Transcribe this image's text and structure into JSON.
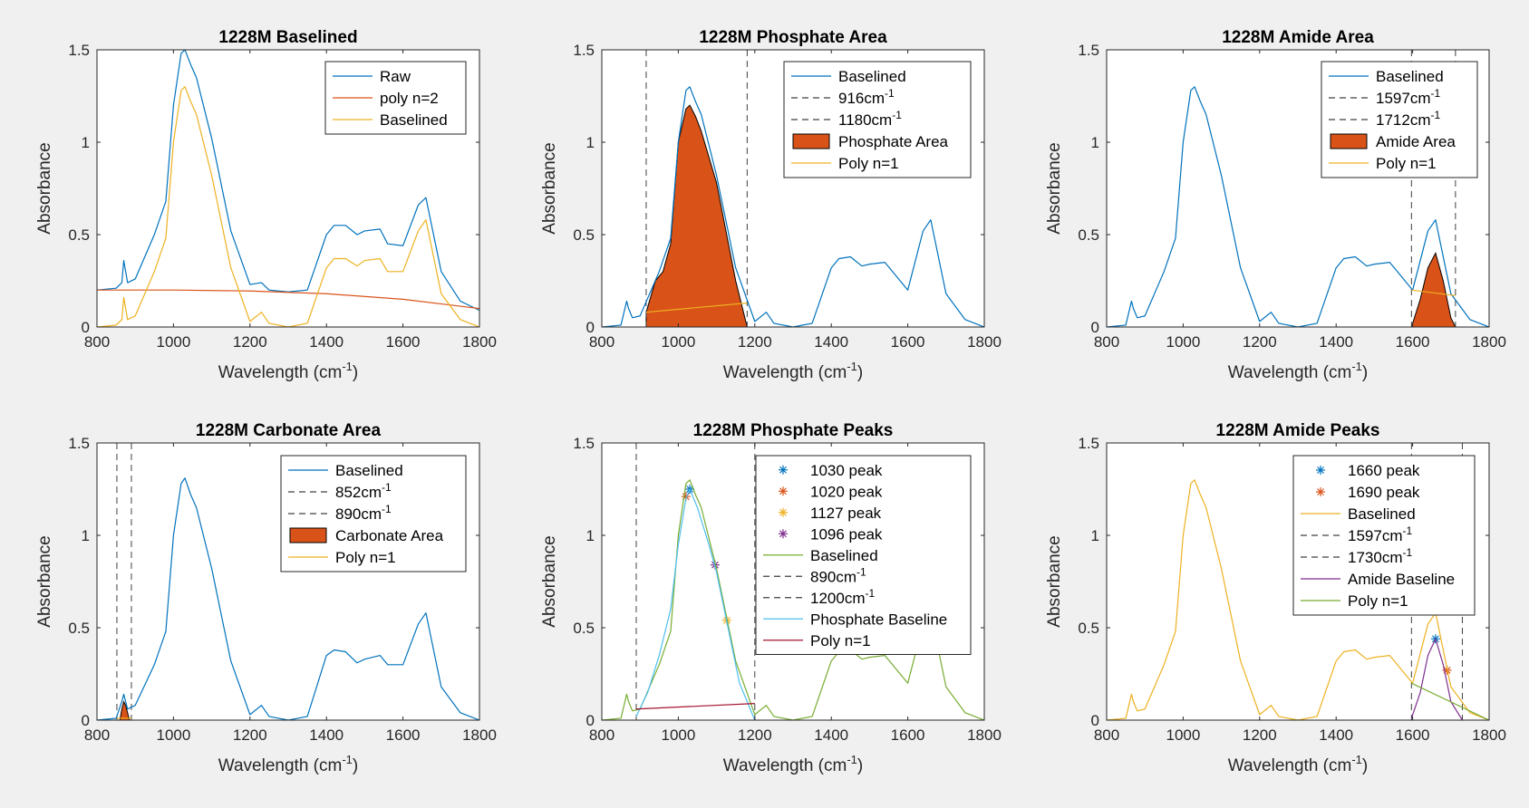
{
  "chart_data": [
    {
      "type": "line",
      "title": "1228M Baselined",
      "xlabel": "Wavelength (cm",
      "xlabel_sup": "-1",
      "xlabel_end": ")",
      "ylabel": "Absorbance",
      "xlim": [
        800,
        1800
      ],
      "ylim": [
        0,
        1.5
      ],
      "xticks": [
        "800",
        "1000",
        "1200",
        "1400",
        "1600",
        "1800"
      ],
      "yticks": [
        "0",
        "0.5",
        "1",
        "1.5"
      ],
      "legend_position": "top-right",
      "series": [
        {
          "name": "Raw",
          "color": "#0072BD",
          "x": [
            800,
            850,
            865,
            870,
            880,
            900,
            950,
            980,
            1000,
            1020,
            1030,
            1045,
            1060,
            1100,
            1150,
            1200,
            1230,
            1250,
            1300,
            1350,
            1400,
            1420,
            1450,
            1480,
            1500,
            1540,
            1560,
            1600,
            1640,
            1660,
            1700,
            1750,
            1800
          ],
          "y": [
            0.2,
            0.21,
            0.24,
            0.36,
            0.24,
            0.26,
            0.5,
            0.68,
            1.2,
            1.48,
            1.5,
            1.42,
            1.35,
            1.02,
            0.52,
            0.23,
            0.24,
            0.2,
            0.19,
            0.2,
            0.5,
            0.55,
            0.55,
            0.5,
            0.52,
            0.53,
            0.45,
            0.44,
            0.66,
            0.7,
            0.3,
            0.14,
            0.09
          ]
        },
        {
          "name": "poly n=2",
          "color": "#D95319",
          "x": [
            800,
            1000,
            1200,
            1400,
            1600,
            1800
          ],
          "y": [
            0.2,
            0.2,
            0.195,
            0.18,
            0.15,
            0.1
          ]
        },
        {
          "name": "Baselined",
          "color": "#EDB120",
          "x": [
            800,
            850,
            865,
            870,
            880,
            900,
            950,
            980,
            1000,
            1020,
            1030,
            1045,
            1060,
            1100,
            1150,
            1200,
            1230,
            1250,
            1300,
            1350,
            1400,
            1420,
            1450,
            1480,
            1500,
            1540,
            1560,
            1600,
            1640,
            1660,
            1700,
            1750,
            1800
          ],
          "y": [
            0,
            0.01,
            0.04,
            0.16,
            0.04,
            0.06,
            0.3,
            0.48,
            1.0,
            1.28,
            1.3,
            1.22,
            1.15,
            0.82,
            0.32,
            0.03,
            0.08,
            0.02,
            0,
            0.02,
            0.32,
            0.37,
            0.37,
            0.33,
            0.36,
            0.37,
            0.3,
            0.3,
            0.52,
            0.58,
            0.18,
            0.04,
            0
          ]
        }
      ]
    },
    {
      "type": "line",
      "title": "1228M Phosphate Area",
      "xlabel": "Wavelength (cm",
      "xlabel_sup": "-1",
      "xlabel_end": ")",
      "ylabel": "Absorbance",
      "xlim": [
        800,
        1800
      ],
      "ylim": [
        0,
        1.5
      ],
      "xticks": [
        "800",
        "1000",
        "1200",
        "1400",
        "1600",
        "1800"
      ],
      "yticks": [
        "0",
        "0.5",
        "1",
        "1.5"
      ],
      "legend_position": "top-right",
      "vlines": [
        916,
        1180
      ],
      "area": {
        "x": [
          916,
          940,
          960,
          980,
          1000,
          1020,
          1030,
          1045,
          1060,
          1100,
          1150,
          1180
        ],
        "y": [
          0.08,
          0.25,
          0.3,
          0.45,
          1.0,
          1.18,
          1.2,
          1.14,
          1.06,
          0.78,
          0.25,
          0.0
        ]
      },
      "series": [
        {
          "name": "Baselined",
          "color": "#0072BD",
          "x": [
            800,
            850,
            865,
            870,
            880,
            900,
            950,
            980,
            1000,
            1020,
            1030,
            1045,
            1060,
            1100,
            1150,
            1200,
            1230,
            1250,
            1300,
            1350,
            1400,
            1420,
            1450,
            1480,
            1500,
            1540,
            1560,
            1600,
            1640,
            1660,
            1700,
            1750,
            1800
          ],
          "y": [
            0,
            0.01,
            0.14,
            0.1,
            0.05,
            0.06,
            0.3,
            0.48,
            1.0,
            1.28,
            1.3,
            1.22,
            1.15,
            0.82,
            0.32,
            0.03,
            0.08,
            0.02,
            0,
            0.02,
            0.32,
            0.37,
            0.38,
            0.33,
            0.34,
            0.35,
            0.3,
            0.2,
            0.52,
            0.58,
            0.18,
            0.04,
            0
          ]
        },
        {
          "name": "916cm",
          "sup": "-1",
          "dash": true,
          "color": "#404040"
        },
        {
          "name": "1180cm",
          "sup": "-1",
          "dash": true,
          "color": "#404040"
        },
        {
          "name": "Phosphate Area",
          "swatch": true,
          "color": "#D95319"
        },
        {
          "name": "Poly n=1",
          "color": "#EDB120",
          "x": [
            916,
            1180
          ],
          "y": [
            0.08,
            0.13
          ]
        }
      ]
    },
    {
      "type": "line",
      "title": "1228M Amide Area",
      "xlabel": "Wavelength (cm",
      "xlabel_sup": "-1",
      "xlabel_end": ")",
      "ylabel": "Absorbance",
      "xlim": [
        800,
        1800
      ],
      "ylim": [
        0,
        1.5
      ],
      "xticks": [
        "800",
        "1000",
        "1200",
        "1400",
        "1600",
        "1800"
      ],
      "yticks": [
        "0",
        "0.5",
        "1",
        "1.5"
      ],
      "legend_position": "top-right",
      "vlines": [
        1597,
        1712
      ],
      "area": {
        "x": [
          1597,
          1620,
          1640,
          1660,
          1680,
          1700,
          1712
        ],
        "y": [
          0,
          0.15,
          0.32,
          0.4,
          0.25,
          0.05,
          0
        ]
      },
      "series": [
        {
          "name": "Baselined",
          "color": "#0072BD",
          "x": [
            800,
            850,
            865,
            870,
            880,
            900,
            950,
            980,
            1000,
            1020,
            1030,
            1045,
            1060,
            1100,
            1150,
            1200,
            1230,
            1250,
            1300,
            1350,
            1400,
            1420,
            1450,
            1480,
            1500,
            1540,
            1560,
            1600,
            1640,
            1660,
            1700,
            1750,
            1800
          ],
          "y": [
            0,
            0.01,
            0.14,
            0.1,
            0.05,
            0.06,
            0.3,
            0.48,
            1.0,
            1.28,
            1.3,
            1.22,
            1.15,
            0.82,
            0.32,
            0.03,
            0.08,
            0.02,
            0,
            0.02,
            0.32,
            0.37,
            0.38,
            0.33,
            0.34,
            0.35,
            0.3,
            0.2,
            0.52,
            0.58,
            0.18,
            0.04,
            0
          ]
        },
        {
          "name": "1597cm",
          "sup": "-1",
          "dash": true,
          "color": "#404040"
        },
        {
          "name": "1712cm",
          "sup": "-1",
          "dash": true,
          "color": "#404040"
        },
        {
          "name": "Amide Area",
          "swatch": true,
          "color": "#D95319"
        },
        {
          "name": "Poly n=1",
          "color": "#EDB120",
          "x": [
            1597,
            1712
          ],
          "y": [
            0.2,
            0.17
          ]
        }
      ]
    },
    {
      "type": "line",
      "title": "1228M Carbonate Area",
      "xlabel": "Wavelength (cm",
      "xlabel_sup": "-1",
      "xlabel_end": ")",
      "ylabel": "Absorbance",
      "xlim": [
        800,
        1800
      ],
      "ylim": [
        0,
        1.5
      ],
      "xticks": [
        "800",
        "1000",
        "1200",
        "1400",
        "1600",
        "1800"
      ],
      "yticks": [
        "0",
        "0.5",
        "1",
        "1.5"
      ],
      "legend_position": "top-right",
      "vlines": [
        852,
        890
      ],
      "area": {
        "x": [
          860,
          865,
          870,
          875,
          880,
          885
        ],
        "y": [
          0,
          0.06,
          0.1,
          0.08,
          0.04,
          0
        ]
      },
      "series": [
        {
          "name": "Baselined",
          "color": "#0072BD",
          "x": [
            800,
            850,
            865,
            870,
            880,
            900,
            950,
            980,
            1000,
            1020,
            1030,
            1045,
            1060,
            1100,
            1150,
            1200,
            1230,
            1250,
            1300,
            1350,
            1400,
            1420,
            1450,
            1480,
            1500,
            1540,
            1560,
            1600,
            1640,
            1660,
            1700,
            1750,
            1800
          ],
          "y": [
            0,
            0.01,
            0.1,
            0.14,
            0.06,
            0.08,
            0.3,
            0.48,
            1.0,
            1.28,
            1.31,
            1.22,
            1.15,
            0.82,
            0.32,
            0.03,
            0.08,
            0.02,
            0,
            0.02,
            0.35,
            0.38,
            0.37,
            0.31,
            0.33,
            0.35,
            0.3,
            0.3,
            0.52,
            0.58,
            0.18,
            0.04,
            0
          ]
        },
        {
          "name": "852cm",
          "sup": "-1",
          "dash": true,
          "color": "#404040"
        },
        {
          "name": "890cm",
          "sup": "-1",
          "dash": true,
          "color": "#404040"
        },
        {
          "name": "Carbonate Area",
          "swatch": true,
          "color": "#D95319"
        },
        {
          "name": "Poly n=1",
          "color": "#EDB120",
          "x": [
            852,
            890
          ],
          "y": [
            0.01,
            0.01
          ]
        }
      ]
    },
    {
      "type": "line",
      "title": "1228M Phosphate Peaks",
      "xlabel": "Wavelength (cm",
      "xlabel_sup": "-1",
      "xlabel_end": ")",
      "ylabel": "Absorbance",
      "xlim": [
        800,
        1800
      ],
      "ylim": [
        0,
        1.5
      ],
      "xticks": [
        "800",
        "1000",
        "1200",
        "1400",
        "1600",
        "1800"
      ],
      "yticks": [
        "0",
        "0.5",
        "1",
        "1.5"
      ],
      "legend_position": "top-right",
      "vlines": [
        890,
        1200
      ],
      "series": [
        {
          "name": "1030 peak",
          "marker": true,
          "color": "#0072BD",
          "x": [
            1030
          ],
          "y": [
            1.25
          ]
        },
        {
          "name": "1020 peak",
          "marker": true,
          "color": "#D95319",
          "x": [
            1020
          ],
          "y": [
            1.21
          ]
        },
        {
          "name": "1127 peak",
          "marker": true,
          "color": "#EDB120",
          "x": [
            1127
          ],
          "y": [
            0.54
          ]
        },
        {
          "name": "1096 peak",
          "marker": true,
          "color": "#7E2F8E",
          "x": [
            1096
          ],
          "y": [
            0.84
          ]
        },
        {
          "name": "Baselined",
          "color": "#77AC30",
          "x": [
            800,
            850,
            865,
            870,
            880,
            900,
            950,
            980,
            1000,
            1020,
            1030,
            1045,
            1060,
            1100,
            1150,
            1200,
            1230,
            1250,
            1300,
            1350,
            1400,
            1420,
            1450,
            1480,
            1500,
            1540,
            1560,
            1600,
            1640,
            1660,
            1700,
            1750,
            1800
          ],
          "y": [
            0,
            0.01,
            0.14,
            0.1,
            0.05,
            0.06,
            0.3,
            0.48,
            1.0,
            1.28,
            1.3,
            1.22,
            1.15,
            0.82,
            0.32,
            0.03,
            0.08,
            0.02,
            0,
            0.02,
            0.32,
            0.37,
            0.38,
            0.33,
            0.34,
            0.35,
            0.3,
            0.2,
            0.52,
            0.58,
            0.18,
            0.04,
            0
          ]
        },
        {
          "name": "890cm",
          "sup": "-1",
          "dash": true,
          "color": "#404040"
        },
        {
          "name": "1200cm",
          "sup": "-1",
          "dash": true,
          "color": "#404040"
        },
        {
          "name": "Phosphate Baseline",
          "color": "#4DBEEE",
          "x": [
            890,
            920,
            950,
            980,
            1000,
            1020,
            1030,
            1050,
            1080,
            1100,
            1130,
            1160,
            1200
          ],
          "y": [
            0.02,
            0.15,
            0.35,
            0.6,
            0.95,
            1.2,
            1.25,
            1.15,
            0.95,
            0.8,
            0.5,
            0.2,
            0
          ]
        },
        {
          "name": "Poly n=1",
          "color": "#A2142F",
          "x": [
            890,
            1200
          ],
          "y": [
            0.06,
            0.09
          ]
        }
      ]
    },
    {
      "type": "line",
      "title": "1228M Amide Peaks",
      "xlabel": "Wavelength (cm",
      "xlabel_sup": "-1",
      "xlabel_end": ")",
      "ylabel": "Absorbance",
      "xlim": [
        800,
        1800
      ],
      "ylim": [
        0,
        1.5
      ],
      "xticks": [
        "800",
        "1000",
        "1200",
        "1400",
        "1600",
        "1800"
      ],
      "yticks": [
        "0",
        "0.5",
        "1",
        "1.5"
      ],
      "legend_position": "top-right",
      "vlines": [
        1597,
        1730
      ],
      "series": [
        {
          "name": "1660 peak",
          "marker": true,
          "color": "#0072BD",
          "x": [
            1660
          ],
          "y": [
            0.44
          ]
        },
        {
          "name": "1690 peak",
          "marker": true,
          "color": "#D95319",
          "x": [
            1690
          ],
          "y": [
            0.27
          ]
        },
        {
          "name": "Baselined",
          "color": "#EDB120",
          "x": [
            800,
            850,
            865,
            870,
            880,
            900,
            950,
            980,
            1000,
            1020,
            1030,
            1045,
            1060,
            1100,
            1150,
            1200,
            1230,
            1250,
            1300,
            1350,
            1400,
            1420,
            1450,
            1480,
            1500,
            1540,
            1560,
            1600,
            1640,
            1660,
            1700,
            1750,
            1800
          ],
          "y": [
            0,
            0.01,
            0.14,
            0.1,
            0.05,
            0.06,
            0.3,
            0.48,
            1.0,
            1.28,
            1.3,
            1.22,
            1.15,
            0.82,
            0.32,
            0.03,
            0.08,
            0.02,
            0,
            0.02,
            0.32,
            0.37,
            0.38,
            0.33,
            0.34,
            0.35,
            0.3,
            0.2,
            0.52,
            0.58,
            0.18,
            0.04,
            0
          ]
        },
        {
          "name": "1597cm",
          "sup": "-1",
          "dash": true,
          "color": "#404040"
        },
        {
          "name": "1730cm",
          "sup": "-1",
          "dash": true,
          "color": "#404040"
        },
        {
          "name": "Amide Baseline",
          "color": "#7E2F8E",
          "x": [
            1597,
            1620,
            1640,
            1660,
            1680,
            1700,
            1730
          ],
          "y": [
            0.01,
            0.15,
            0.35,
            0.44,
            0.3,
            0.1,
            0
          ]
        },
        {
          "name": "Poly n=1",
          "color": "#77AC30",
          "x": [
            1597,
            1800
          ],
          "y": [
            0.2,
            0.0
          ]
        }
      ]
    }
  ]
}
